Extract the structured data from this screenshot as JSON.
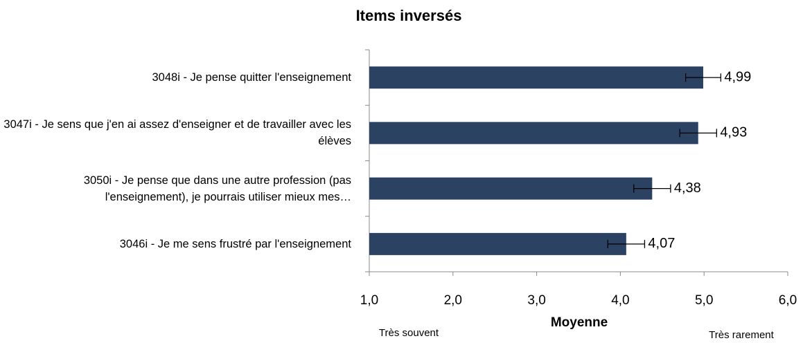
{
  "chart_data": {
    "type": "bar",
    "orientation": "horizontal",
    "title": "Items inversés",
    "categories": [
      "3048i - Je pense quitter l'enseignement",
      "3047i - Je sens que j'en ai assez d'enseigner et de travailler avec les élèves",
      "3050i - Je pense que dans une autre profession (pas l'enseignement), je pourrais utiliser mieux mes…",
      "3046i - Je me sens frustré par l'enseignement"
    ],
    "values": [
      4.99,
      4.93,
      4.38,
      4.07
    ],
    "value_labels": [
      "4,99",
      "4,93",
      "4,38",
      "4,07"
    ],
    "errors": [
      0.21,
      0.22,
      0.22,
      0.22
    ],
    "color": "#2b4263",
    "xlabel": "Moyenne",
    "annotations": [
      "Très souvent",
      "Très rarement"
    ],
    "xlim": [
      1,
      6
    ],
    "xticks": [
      {
        "value": 1,
        "label": "1,0"
      },
      {
        "value": 2,
        "label": "2,0"
      },
      {
        "value": 3,
        "label": "3,0"
      },
      {
        "value": 4,
        "label": "4,0"
      },
      {
        "value": 5,
        "label": "5,0"
      },
      {
        "value": 6,
        "label": "6,0"
      }
    ],
    "grid": false
  }
}
